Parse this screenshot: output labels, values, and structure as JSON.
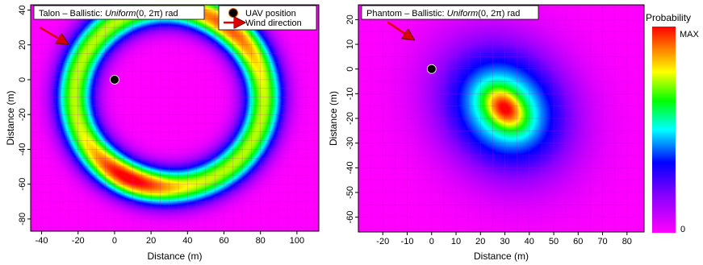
{
  "chart_data": [
    {
      "type": "heatmap",
      "title_prefix": "Talon – Ballistic: ",
      "title_dist": "Uniform",
      "title_suffix": "(0, 2π) rad",
      "xlabel": "Distance (m)",
      "ylabel": "Distance (m)",
      "xlim": [
        -46,
        112
      ],
      "ylim": [
        -87,
        43
      ],
      "xticks": [
        -40,
        -20,
        0,
        20,
        40,
        60,
        80,
        100
      ],
      "yticks": [
        -80,
        -60,
        -40,
        -20,
        0,
        20,
        40
      ],
      "uav_position": [
        0,
        0
      ],
      "wind_arrow": {
        "from": [
          -41,
          30
        ],
        "to": [
          -28,
          22
        ]
      },
      "distribution": {
        "shape": "ring",
        "center": [
          30,
          -10
        ],
        "radius": 52,
        "width": 11,
        "peaks": [
          [
            52,
            18
          ],
          [
            10,
            -52
          ]
        ]
      },
      "legend": {
        "uav_label": "UAV position",
        "wind_label": "Wind direction"
      }
    },
    {
      "type": "heatmap",
      "title_prefix": "Phantom – Ballistic: ",
      "title_dist": "Uniform",
      "title_suffix": "(0, 2π) rad",
      "xlabel": "Distance (m)",
      "ylabel": "Distance (m)",
      "xlim": [
        -30,
        87
      ],
      "ylim": [
        -66,
        26
      ],
      "xticks": [
        -20,
        -10,
        0,
        10,
        20,
        30,
        40,
        50,
        60,
        70,
        80
      ],
      "yticks": [
        -60,
        -50,
        -40,
        -30,
        -20,
        -10,
        0,
        10,
        20
      ],
      "uav_position": [
        0,
        0
      ],
      "wind_arrow": {
        "from": [
          -18,
          19
        ],
        "to": [
          -9,
          13
        ]
      },
      "distribution": {
        "shape": "blob",
        "center": [
          30,
          -16
        ],
        "spread": 18,
        "core": 5
      }
    }
  ],
  "colorbar": {
    "title": "Probability",
    "max_label": "MAX",
    "min_label": "0"
  },
  "colors": {
    "background": "#ff00ff",
    "marker": "#000000",
    "wind_arrow": "#dd0000",
    "grid": "#c800c8",
    "scale": [
      "#ff00ff",
      "#8800ff",
      "#0000ff",
      "#00ffff",
      "#00ff00",
      "#ffff00",
      "#ff8000",
      "#ff0000"
    ]
  }
}
